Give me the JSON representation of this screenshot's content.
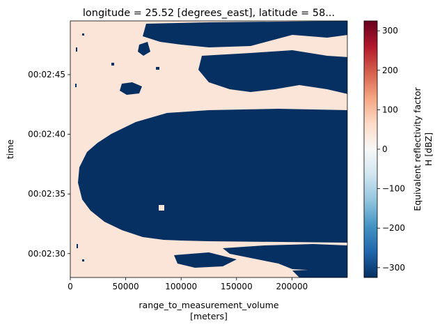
{
  "chart_data": {
    "type": "heatmap",
    "title": "longitude = 25.52 [degrees_east], latitude = 58...",
    "xlabel": "range_to_measurement_volume",
    "xlabel_units": "[meters]",
    "ylabel": "time",
    "x_range": [
      0,
      250000
    ],
    "x_ticks": [
      0,
      50000,
      100000,
      150000,
      200000
    ],
    "x_tick_labels": [
      "0",
      "50000",
      "100000",
      "150000",
      "200000"
    ],
    "y_range_seconds": [
      148,
      169.5
    ],
    "y_ticks_seconds": [
      150,
      155,
      160,
      165
    ],
    "y_tick_labels": [
      "00:02:30",
      "00:02:35",
      "00:02:40",
      "00:02:45"
    ],
    "colorbar": {
      "label_line1": "Equivalent reflectivity factor",
      "label_line2": "H [dBZ]",
      "range": [
        -325,
        325
      ],
      "ticks": [
        -300,
        -200,
        -100,
        0,
        100,
        200,
        300
      ],
      "tick_labels": [
        "−300",
        "−200",
        "−100",
        "0",
        "100",
        "200",
        "300"
      ],
      "colormap": "RdBu_r"
    },
    "value_regions": [
      {
        "description": "near-range and upper band",
        "value_approx": 10
      },
      {
        "description": "central echo-free core",
        "value_approx": -325
      }
    ],
    "grid": false,
    "legend": "colorbar-right"
  }
}
